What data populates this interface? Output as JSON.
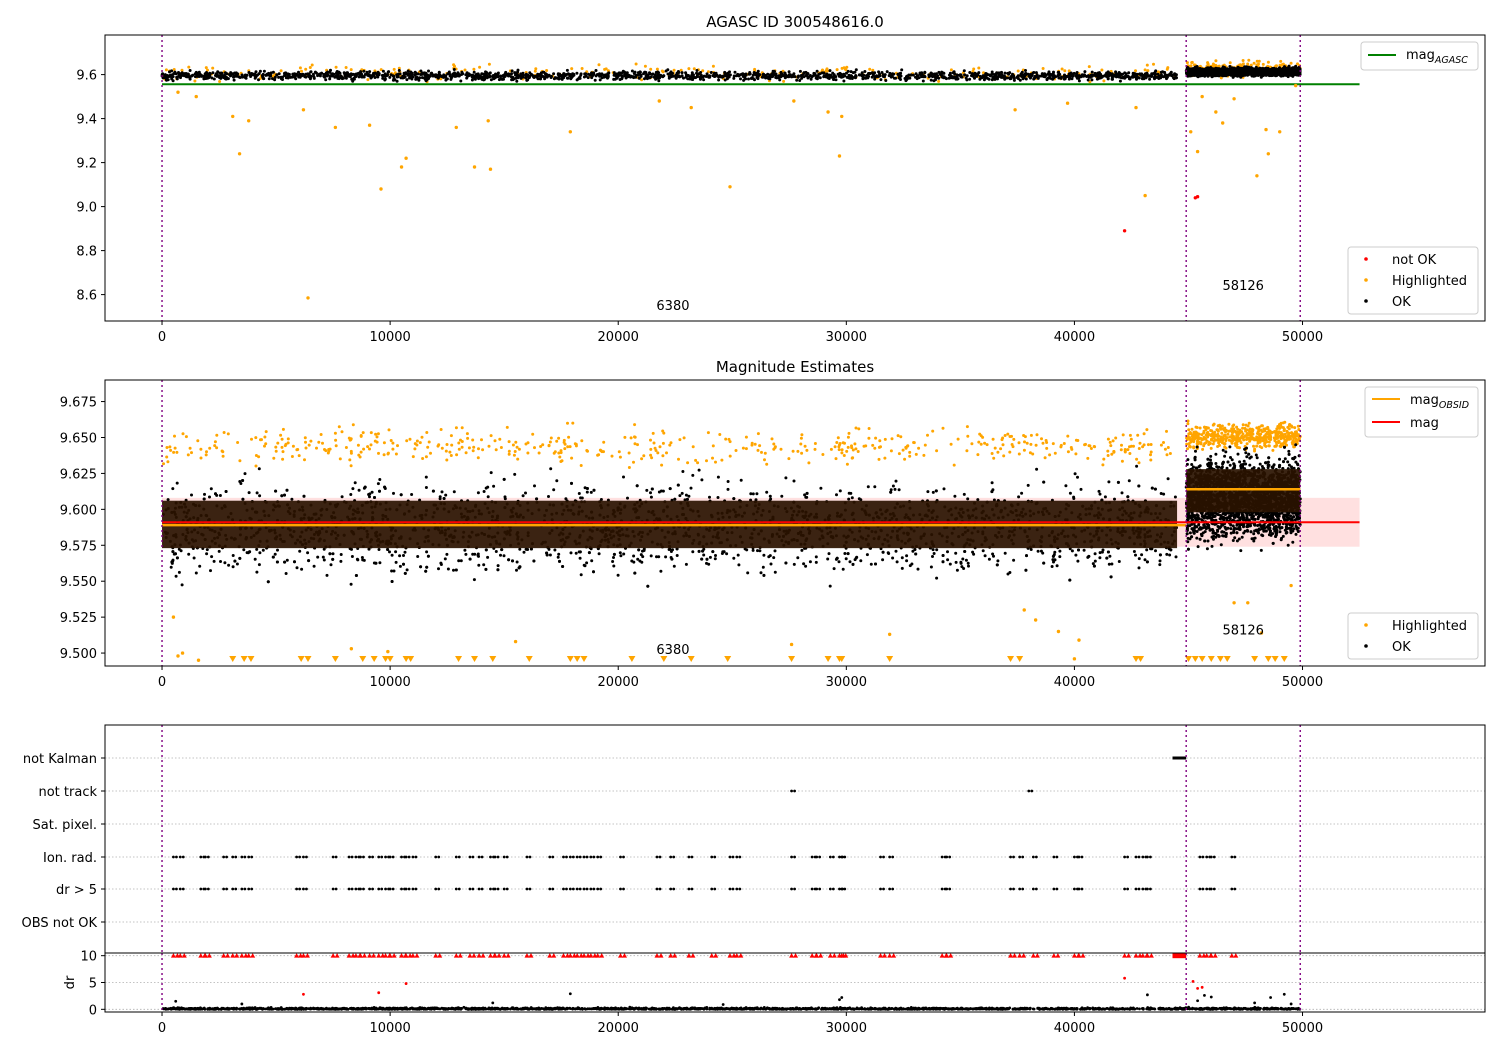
{
  "chart_data": [
    {
      "type": "scatter",
      "title": "AGASC ID 300548616.0",
      "xlim": [
        -2500,
        58000
      ],
      "ylim": [
        8.48,
        9.78
      ],
      "xticks": [
        0,
        10000,
        20000,
        30000,
        40000,
        50000
      ],
      "yticks": [
        8.6,
        8.8,
        9.0,
        9.2,
        9.4,
        9.6
      ],
      "ytick_labels": [
        "8.6",
        "8.8",
        "9.0",
        "9.2",
        "9.4",
        "9.6"
      ],
      "obs_boundaries": [
        0,
        44900,
        49900
      ],
      "obs_labels": [
        {
          "text": "6380",
          "x": 22400,
          "y": 8.53
        },
        {
          "text": "58126",
          "x": 47400,
          "y": 8.62
        }
      ],
      "reference_line": {
        "name": "mag",
        "subscript": "AGASC",
        "value": 9.556,
        "x_end": 52500,
        "color": "#008000"
      },
      "series": [
        {
          "name": "not OK",
          "color": "#ff0000",
          "points": [
            [
              42200,
              8.89
            ],
            [
              45300,
              9.04
            ],
            [
              45400,
              9.045
            ]
          ]
        },
        {
          "name": "Highlighted",
          "color": "#ffa500",
          "points": [
            [
              700,
              9.52
            ],
            [
              1500,
              9.5
            ],
            [
              3100,
              9.41
            ],
            [
              3400,
              9.24
            ],
            [
              3800,
              9.39
            ],
            [
              6200,
              9.44
            ],
            [
              6400,
              8.585
            ],
            [
              7600,
              9.36
            ],
            [
              9100,
              9.37
            ],
            [
              9600,
              9.08
            ],
            [
              10500,
              9.18
            ],
            [
              10700,
              9.22
            ],
            [
              12900,
              9.36
            ],
            [
              13700,
              9.18
            ],
            [
              14300,
              9.39
            ],
            [
              14400,
              9.17
            ],
            [
              17900,
              9.34
            ],
            [
              21800,
              9.48
            ],
            [
              23200,
              9.45
            ],
            [
              24900,
              9.09
            ],
            [
              27700,
              9.48
            ],
            [
              29200,
              9.43
            ],
            [
              29700,
              9.23
            ],
            [
              29800,
              9.41
            ],
            [
              37400,
              9.44
            ],
            [
              39700,
              9.47
            ],
            [
              42700,
              9.45
            ],
            [
              43100,
              9.05
            ],
            [
              45100,
              9.34
            ],
            [
              45400,
              9.25
            ],
            [
              45600,
              9.5
            ],
            [
              46200,
              9.43
            ],
            [
              46500,
              9.38
            ],
            [
              47000,
              9.49
            ],
            [
              48000,
              9.14
            ],
            [
              48400,
              9.35
            ],
            [
              48500,
              9.24
            ],
            [
              49000,
              9.34
            ],
            [
              49700,
              9.55
            ]
          ]
        },
        {
          "name": "OK",
          "color": "#000000",
          "bands": [
            {
              "x": [
                0,
                44500
              ],
              "y": [
                9.565,
                9.625
              ]
            },
            {
              "x": [
                44900,
                49900
              ],
              "y": [
                9.585,
                9.64
              ]
            }
          ]
        }
      ],
      "legend_lines": {
        "position": "upper right",
        "entries": [
          {
            "name": "mag",
            "subscript": "AGASC",
            "color": "#008000"
          }
        ]
      },
      "legend": {
        "position": "lower right",
        "entries": [
          "not OK",
          "Highlighted",
          "OK"
        ]
      }
    },
    {
      "type": "scatter",
      "title": "Magnitude Estimates",
      "xlim": [
        -2500,
        58000
      ],
      "ylim": [
        9.491,
        9.69
      ],
      "xticks": [
        0,
        10000,
        20000,
        30000,
        40000,
        50000
      ],
      "yticks": [
        9.5,
        9.525,
        9.55,
        9.575,
        9.6,
        9.625,
        9.65,
        9.675
      ],
      "ytick_labels": [
        "9.500",
        "9.525",
        "9.550",
        "9.575",
        "9.600",
        "9.625",
        "9.650",
        "9.675"
      ],
      "obs_boundaries": [
        0,
        44900,
        49900
      ],
      "obs_labels": [
        {
          "text": "6380",
          "x": 22400,
          "y": 9.4995
        },
        {
          "text": "58126",
          "x": 47400,
          "y": 9.513
        }
      ],
      "mag_line": {
        "name": "mag",
        "value": 9.591,
        "band": [
          9.574,
          9.608
        ],
        "x_end": 52500,
        "color": "#ff0000"
      },
      "obsid_lines": [
        {
          "x": [
            0,
            44900
          ],
          "value": 9.589
        },
        {
          "x": [
            44900,
            49900
          ],
          "value": 9.614
        }
      ],
      "obsid_line_name": "mag",
      "obsid_line_subscript": "OBSID",
      "series": [
        {
          "name": "Highlighted",
          "color": "#ffa500",
          "bands": [
            {
              "x": [
                0,
                44500
              ],
              "y": [
                9.628,
                9.66
              ]
            },
            {
              "x": [
                44900,
                49900
              ],
              "y": [
                9.64,
                9.662
              ]
            }
          ]
        },
        {
          "name": "OK",
          "color": "#000000",
          "bands": [
            {
              "x": [
                0,
                44500
              ],
              "y": [
                9.545,
                9.63
              ]
            },
            {
              "x": [
                44900,
                49900
              ],
              "y": [
                9.57,
                9.645
              ]
            }
          ]
        }
      ],
      "low_outliers": [
        [
          500,
          9.525
        ],
        [
          700,
          9.498
        ],
        [
          900,
          9.5
        ],
        [
          1600,
          9.495
        ],
        [
          8300,
          9.503
        ],
        [
          9900,
          9.501
        ],
        [
          15500,
          9.508
        ],
        [
          27600,
          9.506
        ],
        [
          31900,
          9.513
        ],
        [
          37800,
          9.53
        ],
        [
          38300,
          9.523
        ],
        [
          39300,
          9.515
        ],
        [
          40000,
          9.496
        ],
        [
          40200,
          9.509
        ],
        [
          47000,
          9.535
        ],
        [
          47600,
          9.535
        ],
        [
          48200,
          9.514
        ],
        [
          49500,
          9.547
        ]
      ],
      "clipped_markers_x": [
        3100,
        3600,
        3900,
        6100,
        6400,
        7600,
        8800,
        9300,
        9800,
        10000,
        10700,
        10900,
        13000,
        13700,
        14500,
        16100,
        17900,
        18200,
        18500,
        20600,
        22000,
        23200,
        24800,
        27600,
        29200,
        29700,
        29800,
        31900,
        37200,
        37600,
        42700,
        42900,
        45000,
        45300,
        45600,
        46000,
        46400,
        46700,
        47900,
        48500,
        48800,
        49200
      ],
      "legend_lines": {
        "position": "upper right",
        "entries": [
          {
            "name": "mag",
            "subscript": "OBSID",
            "color": "#ffa500"
          },
          {
            "name": "mag",
            "subscript": "",
            "color": "#ff0000"
          }
        ]
      },
      "legend": {
        "position": "lower right",
        "entries": [
          "Highlighted",
          "OK"
        ]
      }
    },
    {
      "type": "scatter",
      "title": "",
      "xlim": [
        -2500,
        58000
      ],
      "categories": [
        "OBS not OK",
        "dr > 5",
        "Ion. rad.",
        "Sat. pixel.",
        "not track",
        "not Kalman"
      ],
      "flags": [
        {
          "category": "not Kalman",
          "ranges": [
            [
              44300,
              44900
            ]
          ]
        },
        {
          "category": "not track",
          "points": [
            27600,
            38000
          ]
        },
        {
          "category": "Ion. rad.",
          "points": [
            500,
            800,
            1700,
            1900,
            2700,
            3100,
            3500,
            3800,
            5900,
            6200,
            7500,
            8200,
            8500,
            8700,
            9100,
            9500,
            9800,
            10000,
            10500,
            10700,
            11000,
            12000,
            12900,
            13500,
            13900,
            14400,
            14600,
            15000,
            16000,
            17000,
            17600,
            17900,
            18200,
            18500,
            18800,
            19100,
            20100,
            21700,
            22300,
            23100,
            24100,
            24900,
            25200,
            27600,
            28500,
            28700,
            29300,
            29700,
            29800,
            31500,
            31900,
            34200,
            34400,
            37200,
            37600,
            38200,
            39100,
            40000,
            40200,
            42200,
            42700,
            43000,
            43200,
            45500,
            45800,
            46000,
            46900
          ]
        },
        {
          "category": "dr > 5",
          "points": [
            500,
            800,
            1700,
            1900,
            2700,
            3100,
            3500,
            3800,
            5900,
            6200,
            7500,
            8200,
            8500,
            8700,
            9100,
            9500,
            9800,
            10000,
            10500,
            10700,
            11000,
            12000,
            12900,
            13500,
            13900,
            14400,
            14600,
            15000,
            16000,
            17000,
            17600,
            17900,
            18200,
            18500,
            18800,
            19100,
            20100,
            21700,
            22300,
            23100,
            24100,
            24900,
            25200,
            27600,
            28500,
            28700,
            29300,
            29700,
            29800,
            31500,
            31900,
            34200,
            34400,
            37200,
            37600,
            38200,
            39100,
            40000,
            40200,
            42200,
            42700,
            43000,
            43200,
            45500,
            45800,
            46000,
            46900
          ]
        }
      ],
      "obs_boundaries": [
        0,
        44900,
        49900
      ]
    },
    {
      "type": "scatter",
      "title": "",
      "ylabel": "dr",
      "xlim": [
        -2500,
        58000
      ],
      "ylim": [
        -0.5,
        10.5
      ],
      "xticks": [
        0,
        10000,
        20000,
        30000,
        40000,
        50000
      ],
      "yticks": [
        0,
        5,
        10
      ],
      "obs_boundaries": [
        0,
        44900,
        49900
      ],
      "clipped_red_x": [
        500,
        800,
        1700,
        1900,
        2700,
        3100,
        3500,
        3800,
        5900,
        6200,
        7500,
        8200,
        8500,
        8700,
        9100,
        9500,
        9800,
        10000,
        10500,
        10700,
        11000,
        12000,
        12900,
        13500,
        13900,
        14400,
        14600,
        15000,
        16000,
        17000,
        17600,
        17900,
        18200,
        18500,
        18800,
        19100,
        20100,
        21700,
        22300,
        23100,
        24100,
        24900,
        25200,
        27600,
        28500,
        28700,
        29300,
        29700,
        29800,
        31500,
        31900,
        34200,
        34400,
        37200,
        37600,
        38200,
        39100,
        40000,
        40200,
        42200,
        42700,
        43000,
        43200,
        45500,
        45800,
        46000,
        46900
      ],
      "red_points": [
        [
          6200,
          2.8
        ],
        [
          9500,
          3.1
        ],
        [
          10700,
          4.8
        ],
        [
          42200,
          5.8
        ],
        [
          45200,
          5.2
        ],
        [
          45400,
          3.9
        ],
        [
          45600,
          4.1
        ]
      ],
      "black_outliers": [
        [
          600,
          1.5
        ],
        [
          3500,
          1.0
        ],
        [
          14500,
          1.2
        ],
        [
          17900,
          2.9
        ],
        [
          24600,
          0.9
        ],
        [
          29700,
          1.8
        ],
        [
          29800,
          2.2
        ],
        [
          43200,
          2.7
        ],
        [
          45400,
          1.6
        ],
        [
          45700,
          2.6
        ],
        [
          46000,
          2.3
        ],
        [
          47900,
          1.2
        ],
        [
          48600,
          2.2
        ],
        [
          49200,
          2.8
        ],
        [
          49500,
          1.0
        ]
      ],
      "black_band": {
        "x": [
          0,
          49900
        ],
        "y": [
          0,
          0.8
        ]
      }
    }
  ]
}
